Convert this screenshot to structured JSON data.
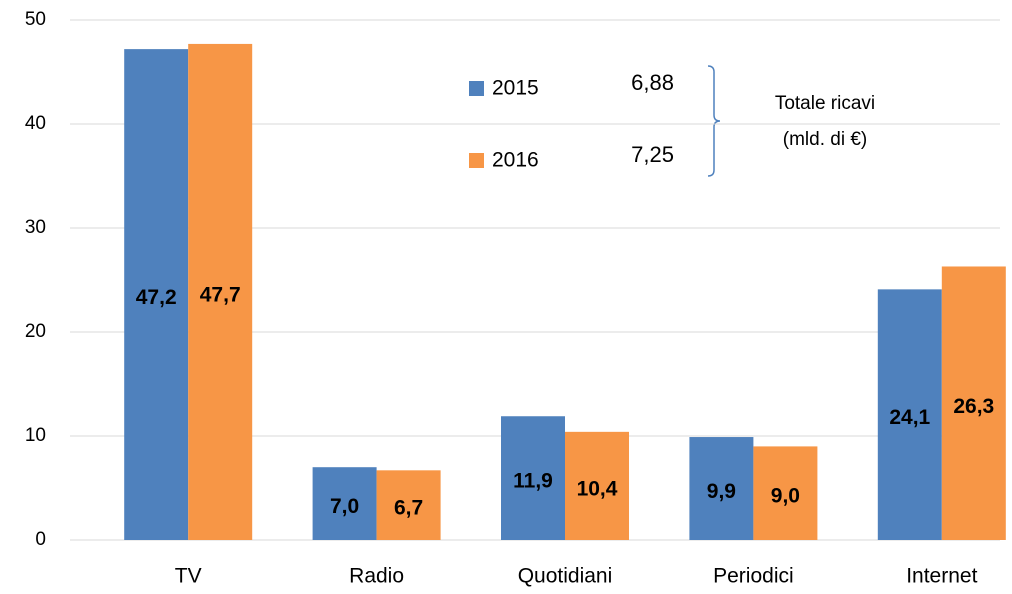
{
  "chart_data": {
    "type": "bar",
    "categories": [
      "TV",
      "Radio",
      "Quotidiani",
      "Periodici",
      "Internet"
    ],
    "series": [
      {
        "name": "2015",
        "color": "#4f81bd",
        "label_color": "#ffffff",
        "values": [
          47.2,
          7.0,
          11.9,
          9.9,
          24.1
        ],
        "value_labels": [
          "47,2",
          "7,0",
          "11,9",
          "9,9",
          "24,1"
        ],
        "total": {
          "value": 6.88,
          "label": "6,88"
        }
      },
      {
        "name": "2016",
        "color": "#f79646",
        "label_color": "#000000",
        "values": [
          47.7,
          6.7,
          10.4,
          9.0,
          26.3
        ],
        "value_labels": [
          "47,7",
          "6,7",
          "10,4",
          "9,0",
          "26,3"
        ],
        "total": {
          "value": 7.25,
          "label": "7,25"
        }
      }
    ],
    "annotations": [
      "Totale ricavi",
      "(mld. di €)"
    ],
    "ylim": [
      0,
      50
    ],
    "yticks": [
      0,
      10,
      20,
      30,
      40,
      50
    ],
    "grid": true
  }
}
